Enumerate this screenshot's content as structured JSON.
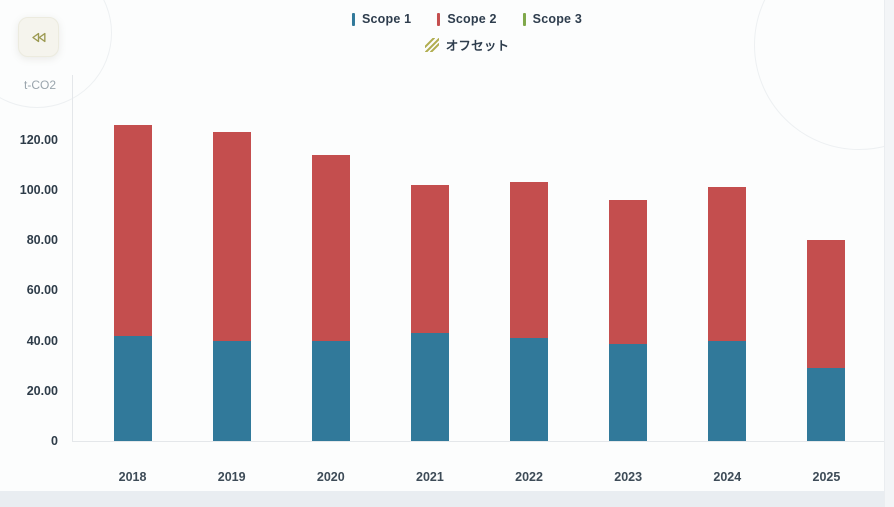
{
  "toolbar": {
    "collapse_button": {
      "icon": "rewind-icon",
      "icon_color": "#9c9a52"
    }
  },
  "chart": {
    "y_axis_title": "t-CO2",
    "legend": {
      "rows": [
        [
          {
            "label": "Scope 1",
            "color": "#31799a",
            "marker": "bar"
          },
          {
            "label": "Scope 2",
            "color": "#c44e4e",
            "marker": "bar"
          },
          {
            "label": "Scope 3",
            "color": "#7fa84a",
            "marker": "bar"
          }
        ],
        [
          {
            "label": "オフセット",
            "color": "#b0ad4f",
            "marker": "hatch"
          }
        ]
      ]
    }
  },
  "chart_data": {
    "type": "bar",
    "stacked": true,
    "title": "",
    "xlabel": "",
    "ylabel": "t-CO2",
    "categories": [
      "2018",
      "2019",
      "2020",
      "2021",
      "2022",
      "2023",
      "2024",
      "2025"
    ],
    "series": [
      {
        "name": "Scope 1",
        "color": "#31799a",
        "values": [
          42,
          40,
          40,
          43,
          41,
          38.5,
          40,
          29
        ]
      },
      {
        "name": "Scope 2",
        "color": "#c44e4e",
        "values": [
          84,
          83,
          74,
          59,
          62,
          57.5,
          61,
          51
        ]
      },
      {
        "name": "Scope 3",
        "color": "#7fa84a",
        "values": [
          0,
          0,
          0,
          0,
          0,
          0,
          0,
          0
        ]
      }
    ],
    "totals": [
      126,
      123,
      114,
      102,
      103,
      96,
      101,
      80
    ],
    "ylim": [
      0,
      130
    ],
    "yticks": [
      0,
      20,
      40,
      60,
      80,
      100,
      120
    ],
    "ytick_labels": [
      "0",
      "20.00",
      "40.00",
      "60.00",
      "80.00",
      "100.00",
      "120.00"
    ],
    "grid": false,
    "legend_position": "top"
  }
}
